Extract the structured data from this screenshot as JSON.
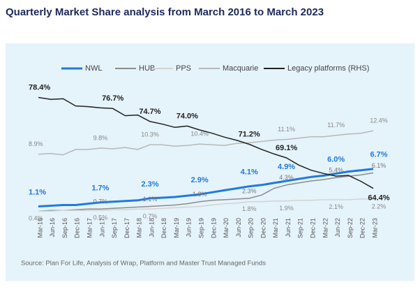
{
  "chart_data": {
    "type": "line",
    "title": "Quarterly Market Share analysis from March 2016 to March 2023",
    "source": "Source: Plan For Life, Analysis of Wrap, Platform and Master Trust Managed Funds",
    "categories": [
      "Mar-16",
      "Jun-16",
      "Sep-16",
      "Dec-16",
      "Mar-17",
      "Jun-17",
      "Sep-17",
      "Dec-17",
      "Mar-18",
      "Jun-18",
      "Dec-18",
      "Mar-19",
      "Jun-19",
      "Sep-19",
      "Dec-19",
      "Mar-20",
      "Jun-20",
      "Sep-20",
      "Dec-20",
      "Mar-21",
      "Jun-21",
      "Sep-21",
      "Dec-21",
      "Mar-22",
      "Jun-22",
      "Sep-22",
      "Dec-22",
      "Mar-23"
    ],
    "ylim": [
      0,
      19.4
    ],
    "y2lim": [
      60.5,
      80.5
    ],
    "series": [
      {
        "name": "NWL",
        "color": "#1f7ae0",
        "values": [
          1.1,
          1.2,
          1.3,
          1.3,
          1.5,
          1.7,
          1.8,
          1.9,
          2.0,
          2.3,
          2.4,
          2.5,
          2.7,
          2.9,
          3.2,
          3.5,
          3.8,
          4.1,
          4.3,
          4.6,
          4.9,
          5.2,
          5.5,
          5.7,
          6.0,
          6.3,
          6.5,
          6.7
        ],
        "value_labels": [
          "1.1%",
          null,
          null,
          null,
          null,
          "1.7%",
          null,
          null,
          null,
          "2.3%",
          null,
          null,
          null,
          "2.9%",
          null,
          null,
          null,
          "4.1%",
          null,
          null,
          "4.9%",
          null,
          null,
          null,
          "6.0%",
          null,
          null,
          "6.7%"
        ]
      },
      {
        "name": "HUB",
        "color": "#8c8c8c",
        "values": [
          0.4,
          0.5,
          0.5,
          0.6,
          0.7,
          0.7,
          0.8,
          0.9,
          1.0,
          1.1,
          1.2,
          1.3,
          1.5,
          1.8,
          2.0,
          2.1,
          2.2,
          2.3,
          2.8,
          3.8,
          4.3,
          4.6,
          4.9,
          5.1,
          5.4,
          5.6,
          5.8,
          6.1
        ],
        "value_labels": [
          null,
          null,
          null,
          null,
          null,
          "0.7%",
          null,
          null,
          null,
          "1.1%",
          null,
          null,
          null,
          "1.8%",
          null,
          null,
          null,
          "2.3%",
          null,
          null,
          "4.3%",
          null,
          null,
          null,
          "5.4%",
          null,
          null,
          "6.1%"
        ]
      },
      {
        "name": "PPS",
        "color": "#d3d3d3",
        "values": [
          0.4,
          0.4,
          0.5,
          0.5,
          0.5,
          0.5,
          0.6,
          0.6,
          0.7,
          0.7,
          0.8,
          0.9,
          1.0,
          1.1,
          1.3,
          1.5,
          1.6,
          1.8,
          1.8,
          1.9,
          1.9,
          2.0,
          2.0,
          2.1,
          2.1,
          2.1,
          2.2,
          2.2
        ],
        "value_labels": [
          "0.4%",
          null,
          null,
          null,
          null,
          "0.5%",
          null,
          null,
          null,
          "0.7%",
          null,
          null,
          null,
          null,
          null,
          null,
          null,
          "1.8%",
          null,
          null,
          "1.9%",
          null,
          null,
          null,
          "2.1%",
          null,
          null,
          "2.2%"
        ]
      },
      {
        "name": "Macquarie",
        "color": "#b8b8b8",
        "values": [
          8.9,
          9.0,
          8.8,
          9.6,
          9.6,
          9.8,
          9.7,
          9.9,
          9.6,
          10.3,
          10.3,
          10.1,
          10.2,
          10.4,
          10.3,
          10.2,
          10.5,
          10.6,
          10.8,
          11.0,
          11.1,
          11.3,
          11.5,
          11.5,
          11.7,
          11.9,
          12.0,
          12.4
        ],
        "value_labels": [
          "8.9%",
          null,
          null,
          null,
          null,
          "9.8%",
          null,
          null,
          null,
          "10.3%",
          null,
          null,
          null,
          "10.4%",
          null,
          null,
          null,
          null,
          null,
          null,
          "11.1%",
          null,
          null,
          null,
          "11.7%",
          null,
          null,
          "12.4%"
        ]
      },
      {
        "name": "Legacy platforms (RHS)",
        "color": "#222222",
        "axis": "y2",
        "values": [
          78.4,
          78.1,
          78.2,
          77.1,
          77.0,
          76.8,
          76.7,
          75.6,
          75.7,
          74.7,
          74.3,
          73.8,
          74.0,
          73.4,
          72.9,
          72.3,
          71.8,
          71.2,
          70.4,
          69.7,
          69.1,
          68.0,
          67.2,
          66.7,
          66.3,
          66.4,
          65.5,
          64.4
        ],
        "value_labels": [
          "78.4%",
          null,
          null,
          null,
          null,
          null,
          "76.7%",
          null,
          null,
          "74.7%",
          null,
          null,
          "74.0%",
          null,
          null,
          null,
          null,
          "71.2%",
          null,
          null,
          "69.1%",
          null,
          null,
          null,
          null,
          null,
          null,
          "64.4%"
        ]
      }
    ]
  }
}
